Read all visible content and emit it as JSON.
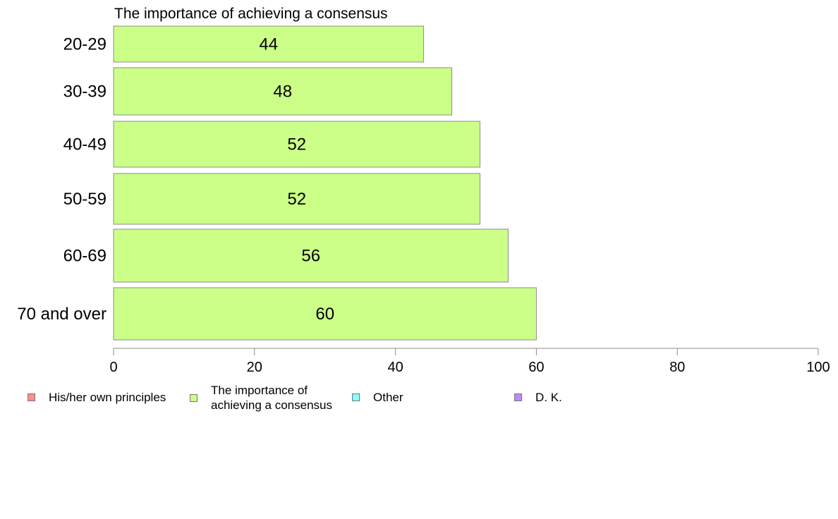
{
  "chart_data": {
    "type": "bar",
    "orientation": "horizontal",
    "title": "The importance of achieving a consensus",
    "categories": [
      "20-29",
      "30-39",
      "40-49",
      "50-59",
      "60-69",
      "70 and over"
    ],
    "values": [
      44,
      48,
      52,
      52,
      56,
      60
    ],
    "value_labels": [
      "44",
      "48",
      "52",
      "52",
      "56",
      "60"
    ],
    "xlim": [
      0,
      100
    ],
    "xticks": [
      0,
      20,
      40,
      60,
      80,
      100
    ],
    "xtick_labels": [
      "0",
      "20",
      "40",
      "60",
      "80",
      "100"
    ],
    "bar_color": "#ccff88",
    "grid": false,
    "legend_position": "bottom",
    "legend": [
      {
        "label": "His/her own principles",
        "color": "#ff8f88"
      },
      {
        "label": "The importance of achieving a consensus",
        "label_lines": [
          "The importance of",
          "achieving a consensus"
        ],
        "color": "#ccff88"
      },
      {
        "label": "Other",
        "color": "#88ffff"
      },
      {
        "label": "D. K.",
        "color": "#bf88ff"
      }
    ]
  }
}
